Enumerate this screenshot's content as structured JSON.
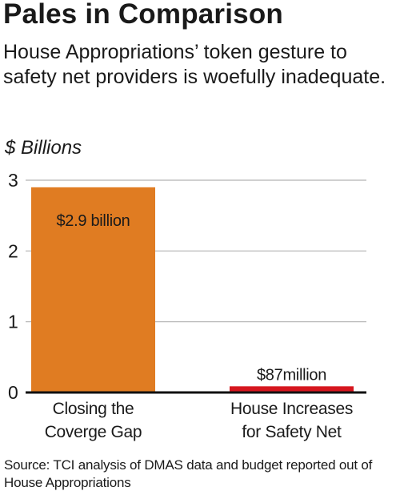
{
  "header": {
    "title": "Pales in Comparison",
    "subtitle": "House Appropriations’ token gesture to safety net providers is woefully inadequate."
  },
  "footer": {
    "source": "Source: TCI analysis of DMAS data and budget reported out of House Appropriations"
  },
  "colors": {
    "bar1": "#e07c22",
    "bar2": "#d6161e",
    "grid": "#b3b3b3",
    "axis": "#111111"
  },
  "chart_data": {
    "type": "bar",
    "ylabel": "$ Billions",
    "ylim": [
      0,
      3
    ],
    "yticks": [
      0,
      1,
      2,
      3
    ],
    "grid": true,
    "categories": [
      [
        "Closing the",
        "Coverge Gap"
      ],
      [
        "House Increases",
        "for Safety Net"
      ]
    ],
    "values": [
      2.9,
      0.087
    ],
    "data_labels": [
      "$2.9 billion",
      "$87million"
    ]
  }
}
